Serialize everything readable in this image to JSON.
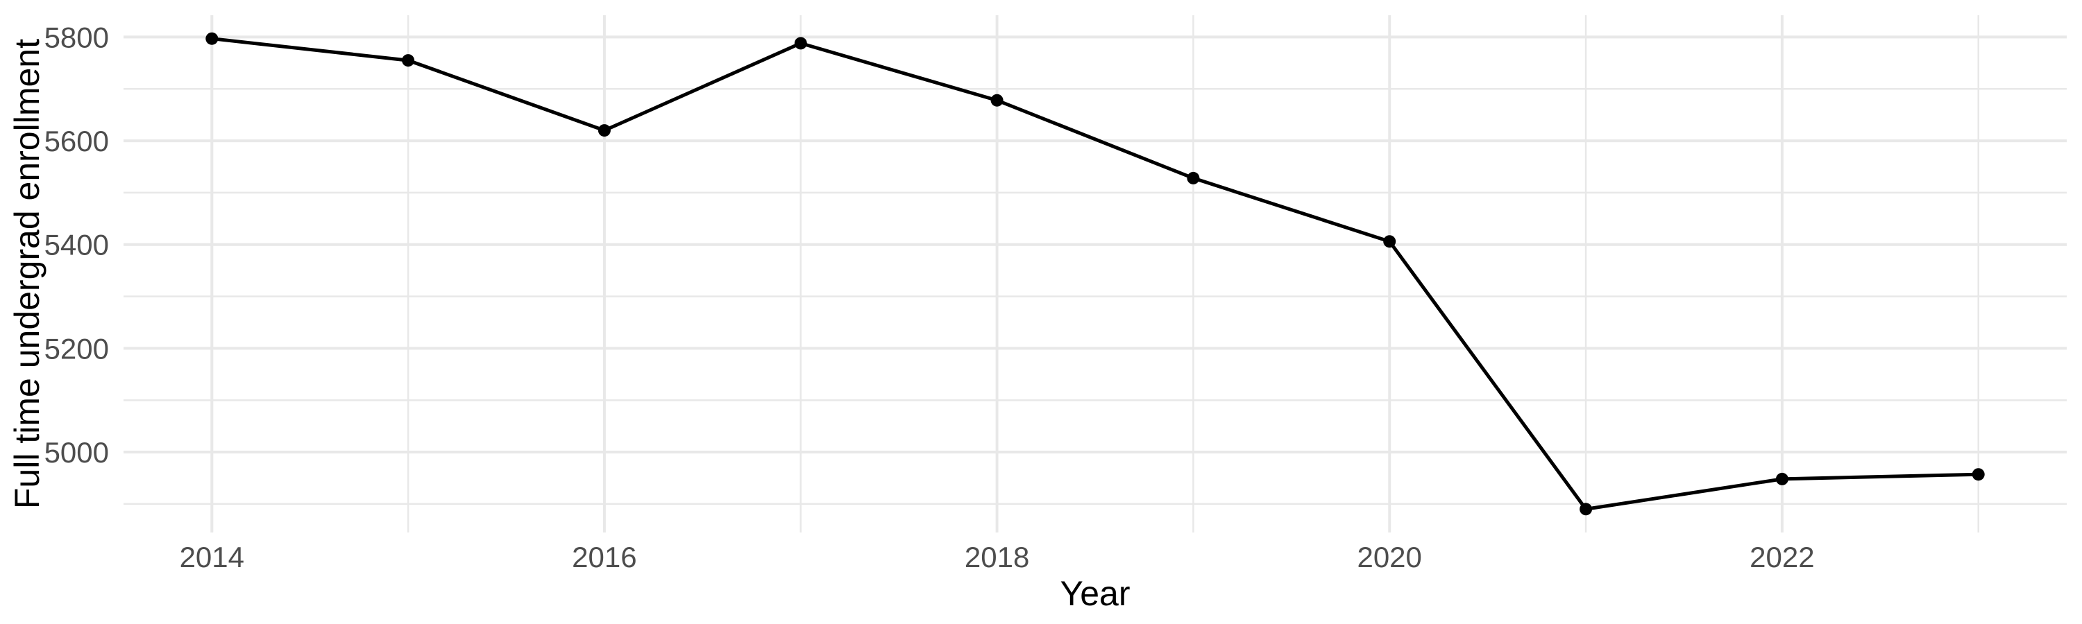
{
  "chart_data": {
    "type": "line",
    "xlabel": "Year",
    "ylabel": "Full time undergrad enrollment",
    "x": [
      2014,
      2015,
      2016,
      2017,
      2018,
      2019,
      2020,
      2021,
      2022,
      2023
    ],
    "series": [
      {
        "name": "Full time undergrad enrollment",
        "values": [
          5797,
          5755,
          5620,
          5788,
          5678,
          5528,
          5406,
          4890,
          4948,
          4957
        ]
      }
    ],
    "x_major_ticks": [
      2014,
      2016,
      2018,
      2020,
      2022
    ],
    "x_minor_ticks": [
      2015,
      2017,
      2019,
      2021,
      2023
    ],
    "y_major_ticks": [
      5000,
      5200,
      5400,
      5600,
      5800
    ],
    "y_minor_ticks": [
      4900,
      5100,
      5300,
      5500,
      5700
    ],
    "xlim": [
      2013.55,
      2023.45
    ],
    "ylim": [
      4845,
      5842
    ],
    "grid": true,
    "legend": "none",
    "markers": true,
    "style": {
      "line_color": "#000000",
      "point_color": "#000000",
      "grid_color": "#E8E8E8",
      "tick_label_color": "#4D4D4D",
      "axis_title_color": "#000000",
      "background": "#FFFFFF"
    }
  }
}
